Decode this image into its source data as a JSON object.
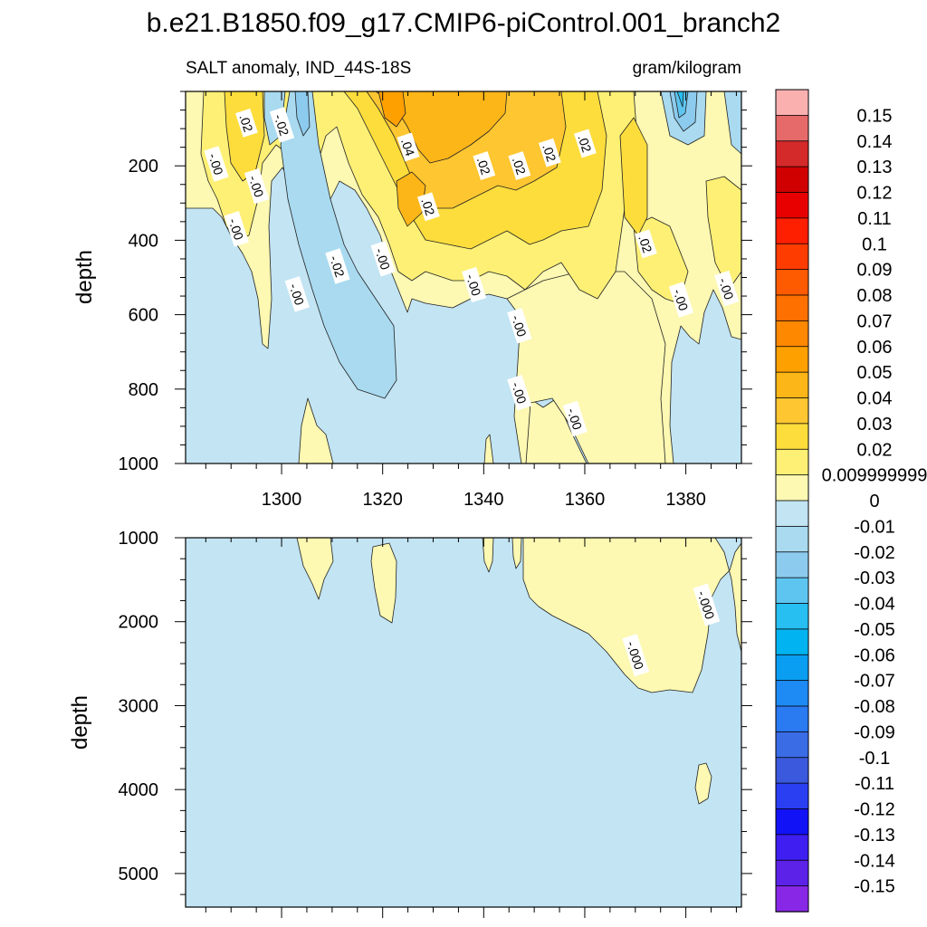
{
  "chart_data": [
    {
      "type": "heatmap",
      "title": "b.e21.B1850.f09_g17.CMIP6-piControl.001_branch2",
      "subtitle_left": "SALT anomaly, IND_44S-18S",
      "subtitle_right": "gram/kilogram",
      "ylabel": "depth",
      "xlabel": "",
      "xlim": [
        1281,
        1391
      ],
      "ylim": [
        1000,
        0
      ],
      "x_ticks": [
        1300,
        1320,
        1340,
        1360,
        1380
      ],
      "y_ticks": [
        200,
        400,
        600,
        800,
        1000
      ],
      "contour_labels": [
        {
          "text": ".02",
          "x": 1293,
          "y": 85
        },
        {
          "text": "-.02",
          "x": 1300,
          "y": 90
        },
        {
          "text": "-.00",
          "x": 1287,
          "y": 195
        },
        {
          "text": "-.00",
          "x": 1295,
          "y": 255
        },
        {
          "text": "-.00",
          "x": 1291,
          "y": 370
        },
        {
          "text": "-.00",
          "x": 1303,
          "y": 545
        },
        {
          "text": "-.02",
          "x": 1311,
          "y": 470
        },
        {
          "text": "-.00",
          "x": 1320,
          "y": 450
        },
        {
          "text": ".04",
          "x": 1325,
          "y": 150
        },
        {
          "text": ".02",
          "x": 1329,
          "y": 310
        },
        {
          "text": ".02",
          "x": 1340,
          "y": 200
        },
        {
          "text": ".02",
          "x": 1347,
          "y": 200
        },
        {
          "text": ".02",
          "x": 1353,
          "y": 165
        },
        {
          "text": ".02",
          "x": 1360,
          "y": 140
        },
        {
          "text": ".02",
          "x": 1372,
          "y": 410
        },
        {
          "text": "-.00",
          "x": 1338,
          "y": 520
        },
        {
          "text": "-.00",
          "x": 1347,
          "y": 630
        },
        {
          "text": "-.00",
          "x": 1347,
          "y": 810
        },
        {
          "text": "-.00",
          "x": 1358,
          "y": 880
        },
        {
          "text": "-.00",
          "x": 1379,
          "y": 560
        },
        {
          "text": "-.00",
          "x": 1388,
          "y": 530
        }
      ]
    },
    {
      "type": "heatmap",
      "ylabel": "depth",
      "xlabel": "",
      "xlim": [
        1281,
        1391
      ],
      "ylim": [
        5400,
        1000
      ],
      "y_ticks": [
        1000,
        2000,
        3000,
        4000,
        5000
      ],
      "contour_labels": [
        {
          "text": "-.000",
          "x": 1384,
          "y": 1800
        },
        {
          "text": "-.000",
          "x": 1370,
          "y": 2400
        }
      ]
    }
  ],
  "colorbar": {
    "levels": [
      "0.15",
      "0.14",
      "0.13",
      "0.12",
      "0.11",
      "0.1",
      "0.09",
      "0.08",
      "0.07",
      "0.06",
      "0.05",
      "0.04",
      "0.03",
      "0.02",
      "0.009999999",
      "0",
      "-0.01",
      "-0.02",
      "-0.03",
      "-0.04",
      "-0.05",
      "-0.06",
      "-0.07",
      "-0.08",
      "-0.09",
      "-0.1",
      "-0.11",
      "-0.12",
      "-0.13",
      "-0.14",
      "-0.15"
    ],
    "colors": [
      "#fbb0b0",
      "#e76a6a",
      "#d42a2a",
      "#d00000",
      "#e80000",
      "#fe1e00",
      "#fe3c00",
      "#fe5a00",
      "#fe7000",
      "#fe8800",
      "#fea000",
      "#fdb617",
      "#fec631",
      "#fddd3c",
      "#fdf075",
      "#fdf8b2",
      "#c2e4f3",
      "#a9daf0",
      "#8ccbee",
      "#5ec5f0",
      "#27bef2",
      "#01b4f1",
      "#0a9ef2",
      "#1e8af4",
      "#2a7af2",
      "#3a6ce6",
      "#3a59dc",
      "#2a3ef2",
      "#1212f6",
      "#3e1ef0",
      "#5c22e8",
      "#8828e6"
    ]
  }
}
